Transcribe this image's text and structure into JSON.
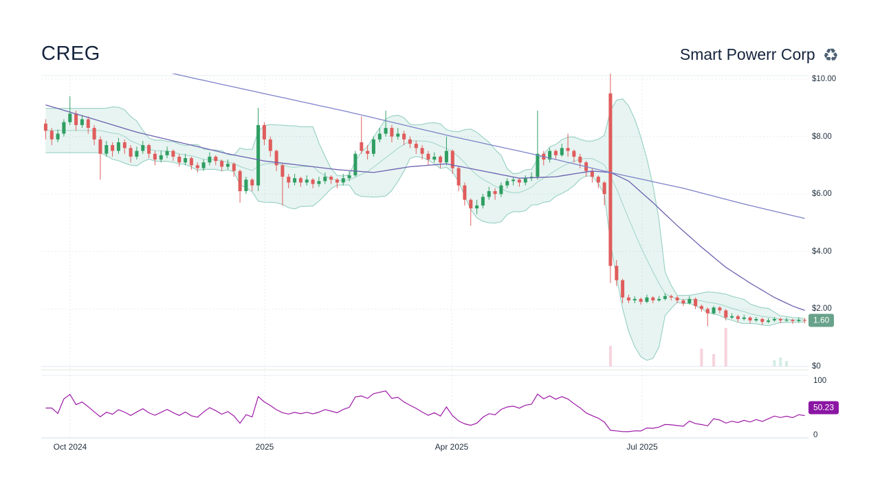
{
  "header": {
    "ticker": "CREG",
    "company": "Smart Powerr Corp",
    "recycle_icon": "♻"
  },
  "price_axis": {
    "labels": [
      "$10.00",
      "$8.00",
      "$6.00",
      "$4.00",
      "$2.00",
      "$0"
    ]
  },
  "time_axis": {
    "labels": [
      "Oct 2024",
      "2025",
      "Apr 2025",
      "Jul 2025"
    ]
  },
  "rsi_axis": {
    "labels": [
      "100",
      "0"
    ]
  },
  "badges": {
    "last_price": "1.60",
    "rsi": "50.23"
  },
  "colors": {
    "up": "#2f9e62",
    "down": "#e05c5c",
    "band_fill": "rgba(57,166,140,0.12)",
    "band_edge": "rgba(57,166,140,0.55)",
    "band_mid": "rgba(57,166,140,0.40)",
    "ma_long": "#7b82c8",
    "ma_medium": "#6a60b0",
    "rsi": "#9c17a6",
    "price_badge": "#68a28b",
    "rsi_badge": "#8b16a3",
    "grid": "#e5ebf2"
  },
  "chart_data": {
    "type": "candlestick",
    "title": "CREG",
    "ylim": [
      0,
      10
    ],
    "y_tick_labels": [
      "$10.00",
      "$8.00",
      "$6.00",
      "$4.00",
      "$2.00",
      "$0"
    ],
    "x_tick_labels": [
      "Oct 2024",
      "2025",
      "Apr 2025",
      "Jul 2025"
    ],
    "last_price": 1.6,
    "bollinger": {
      "window": 10,
      "k": 2
    },
    "oscillator": {
      "period": 7,
      "ylim": [
        0,
        100
      ],
      "last_value": 50.23
    },
    "candles": [
      [
        8.45,
        8.6,
        7.9,
        8.2
      ],
      [
        8.2,
        8.3,
        7.7,
        7.9
      ],
      [
        7.9,
        8.25,
        7.8,
        8.1
      ],
      [
        8.1,
        8.6,
        8.0,
        8.5
      ],
      [
        8.5,
        9.4,
        8.4,
        8.8
      ],
      [
        8.8,
        8.9,
        8.2,
        8.4
      ],
      [
        8.4,
        8.75,
        8.3,
        8.6
      ],
      [
        8.6,
        8.7,
        8.1,
        8.3
      ],
      [
        8.3,
        8.4,
        7.7,
        7.9
      ],
      [
        7.9,
        8.0,
        6.5,
        7.4
      ],
      [
        7.4,
        7.85,
        7.3,
        7.7
      ],
      [
        7.7,
        7.8,
        7.3,
        7.5
      ],
      [
        7.5,
        7.95,
        7.4,
        7.8
      ],
      [
        7.8,
        7.9,
        7.4,
        7.6
      ],
      [
        7.6,
        7.7,
        7.1,
        7.3
      ],
      [
        7.3,
        7.65,
        7.2,
        7.5
      ],
      [
        7.5,
        7.85,
        7.4,
        7.7
      ],
      [
        7.7,
        7.75,
        7.25,
        7.4
      ],
      [
        7.4,
        7.5,
        7.0,
        7.2
      ],
      [
        7.2,
        7.5,
        7.1,
        7.35
      ],
      [
        7.35,
        7.65,
        7.25,
        7.5
      ],
      [
        7.5,
        7.55,
        7.15,
        7.3
      ],
      [
        7.3,
        7.4,
        6.95,
        7.1
      ],
      [
        7.1,
        7.4,
        7.0,
        7.25
      ],
      [
        7.25,
        7.3,
        6.85,
        7.0
      ],
      [
        7.0,
        7.1,
        6.75,
        6.9
      ],
      [
        6.9,
        7.2,
        6.8,
        7.1
      ],
      [
        7.1,
        7.45,
        7.0,
        7.3
      ],
      [
        7.3,
        7.35,
        7.0,
        7.15
      ],
      [
        7.15,
        7.2,
        6.8,
        6.95
      ],
      [
        6.95,
        7.2,
        6.85,
        7.05
      ],
      [
        7.05,
        7.1,
        6.6,
        6.8
      ],
      [
        6.8,
        6.85,
        5.7,
        6.1
      ],
      [
        6.1,
        6.6,
        6.0,
        6.5
      ],
      [
        6.5,
        6.55,
        6.1,
        6.3
      ],
      [
        6.3,
        9.0,
        6.1,
        8.4
      ],
      [
        8.4,
        8.5,
        7.7,
        7.9
      ],
      [
        7.9,
        8.0,
        7.3,
        7.5
      ],
      [
        7.5,
        7.55,
        6.8,
        7.0
      ],
      [
        7.0,
        7.05,
        5.6,
        6.6
      ],
      [
        6.6,
        6.7,
        6.2,
        6.4
      ],
      [
        6.4,
        6.7,
        6.3,
        6.55
      ],
      [
        6.55,
        6.6,
        6.25,
        6.4
      ],
      [
        6.4,
        6.65,
        6.3,
        6.5
      ],
      [
        6.5,
        6.55,
        6.2,
        6.35
      ],
      [
        6.35,
        6.6,
        6.25,
        6.45
      ],
      [
        6.45,
        6.75,
        6.35,
        6.6
      ],
      [
        6.6,
        6.65,
        6.35,
        6.5
      ],
      [
        6.5,
        6.55,
        6.2,
        6.4
      ],
      [
        6.4,
        6.7,
        6.3,
        6.55
      ],
      [
        6.55,
        6.8,
        6.45,
        6.65
      ],
      [
        6.65,
        7.5,
        6.6,
        7.4
      ],
      [
        7.8,
        8.7,
        7.4,
        7.5
      ],
      [
        7.5,
        7.7,
        7.2,
        7.4
      ],
      [
        7.4,
        8.0,
        7.3,
        7.9
      ],
      [
        7.9,
        8.3,
        7.8,
        8.1
      ],
      [
        8.1,
        8.9,
        8.0,
        8.3
      ],
      [
        8.3,
        8.4,
        7.8,
        8.0
      ],
      [
        8.0,
        8.3,
        7.9,
        8.1
      ],
      [
        8.1,
        8.2,
        7.7,
        7.9
      ],
      [
        7.9,
        8.0,
        7.6,
        7.75
      ],
      [
        7.75,
        7.85,
        7.4,
        7.6
      ],
      [
        7.6,
        7.7,
        7.2,
        7.4
      ],
      [
        7.4,
        7.5,
        7.0,
        7.2
      ],
      [
        7.2,
        7.45,
        7.1,
        7.3
      ],
      [
        7.3,
        7.35,
        6.9,
        7.1
      ],
      [
        7.1,
        8.0,
        7.0,
        7.5
      ],
      [
        7.5,
        7.55,
        6.7,
        6.9
      ],
      [
        6.9,
        6.95,
        6.1,
        6.3
      ],
      [
        6.3,
        6.4,
        5.6,
        5.8
      ],
      [
        5.8,
        5.85,
        4.9,
        5.5
      ],
      [
        5.5,
        5.8,
        5.3,
        5.6
      ],
      [
        5.6,
        6.0,
        5.5,
        5.9
      ],
      [
        5.9,
        6.25,
        5.8,
        6.1
      ],
      [
        6.1,
        6.2,
        5.8,
        6.0
      ],
      [
        6.0,
        6.4,
        5.9,
        6.3
      ],
      [
        6.3,
        6.55,
        6.2,
        6.45
      ],
      [
        6.45,
        6.6,
        6.3,
        6.5
      ],
      [
        6.5,
        6.55,
        6.25,
        6.4
      ],
      [
        6.4,
        6.65,
        6.3,
        6.55
      ],
      [
        6.55,
        6.75,
        6.45,
        6.6
      ],
      [
        6.6,
        8.9,
        6.5,
        7.4
      ],
      [
        7.4,
        7.5,
        7.0,
        7.2
      ],
      [
        7.2,
        7.6,
        7.1,
        7.5
      ],
      [
        7.5,
        7.55,
        7.2,
        7.35
      ],
      [
        7.35,
        7.75,
        7.3,
        7.6
      ],
      [
        7.6,
        8.1,
        7.3,
        7.5
      ],
      [
        7.5,
        7.55,
        7.1,
        7.3
      ],
      [
        7.3,
        7.4,
        6.9,
        7.1
      ],
      [
        7.1,
        7.15,
        6.6,
        6.8
      ],
      [
        6.8,
        6.9,
        6.4,
        6.6
      ],
      [
        6.6,
        6.65,
        6.2,
        6.4
      ],
      [
        6.4,
        6.45,
        5.6,
        6.0
      ],
      [
        9.5,
        10.3,
        2.9,
        3.5
      ],
      [
        3.5,
        3.7,
        2.8,
        3.0
      ],
      [
        3.0,
        3.05,
        2.2,
        2.4
      ],
      [
        2.4,
        2.5,
        2.2,
        2.3
      ],
      [
        2.3,
        2.45,
        2.2,
        2.35
      ],
      [
        2.35,
        2.4,
        2.15,
        2.25
      ],
      [
        2.25,
        2.5,
        2.2,
        2.4
      ],
      [
        2.4,
        2.45,
        2.2,
        2.3
      ],
      [
        2.3,
        2.45,
        2.25,
        2.35
      ],
      [
        2.35,
        2.55,
        2.3,
        2.45
      ],
      [
        2.45,
        2.5,
        2.3,
        2.4
      ],
      [
        2.4,
        2.45,
        2.2,
        2.3
      ],
      [
        2.3,
        2.35,
        2.1,
        2.2
      ],
      [
        2.2,
        2.45,
        2.15,
        2.35
      ],
      [
        2.35,
        2.4,
        2.0,
        2.1
      ],
      [
        2.1,
        2.15,
        1.9,
        2.0
      ],
      [
        2.0,
        2.05,
        1.4,
        1.85
      ],
      [
        1.85,
        2.1,
        1.8,
        2.05
      ],
      [
        2.05,
        2.1,
        1.85,
        1.95
      ],
      [
        1.95,
        2.0,
        1.6,
        1.7
      ],
      [
        1.7,
        1.85,
        1.65,
        1.75
      ],
      [
        1.75,
        1.8,
        1.55,
        1.65
      ],
      [
        1.65,
        1.8,
        1.6,
        1.7
      ],
      [
        1.7,
        1.75,
        1.5,
        1.6
      ],
      [
        1.6,
        1.72,
        1.55,
        1.65
      ],
      [
        1.65,
        1.7,
        1.45,
        1.55
      ],
      [
        1.55,
        1.68,
        1.5,
        1.6
      ],
      [
        1.6,
        1.72,
        1.55,
        1.65
      ],
      [
        1.65,
        1.7,
        1.5,
        1.6
      ],
      [
        1.6,
        1.7,
        1.55,
        1.62
      ],
      [
        1.62,
        1.66,
        1.48,
        1.58
      ],
      [
        1.58,
        1.7,
        1.52,
        1.62
      ],
      [
        1.62,
        1.68,
        1.5,
        1.6
      ]
    ],
    "ma_long": [
      [
        0,
        11.2
      ],
      [
        25,
        10.0
      ],
      [
        50,
        8.85
      ],
      [
        67,
        8.0
      ],
      [
        80,
        7.4
      ],
      [
        93,
        6.75
      ],
      [
        105,
        6.2
      ],
      [
        115,
        5.65
      ],
      [
        125,
        5.15
      ]
    ],
    "ma_medium": [
      [
        0,
        9.1
      ],
      [
        8,
        8.6
      ],
      [
        15,
        8.15
      ],
      [
        22,
        7.8
      ],
      [
        30,
        7.4
      ],
      [
        36,
        7.15
      ],
      [
        42,
        7.0
      ],
      [
        48,
        6.85
      ],
      [
        54,
        6.75
      ],
      [
        60,
        6.95
      ],
      [
        66,
        7.05
      ],
      [
        72,
        6.8
      ],
      [
        78,
        6.55
      ],
      [
        84,
        6.6
      ],
      [
        90,
        6.8
      ],
      [
        93,
        6.75
      ],
      [
        96,
        6.45
      ],
      [
        100,
        5.7
      ],
      [
        104,
        4.9
      ],
      [
        108,
        4.15
      ],
      [
        112,
        3.45
      ],
      [
        116,
        2.9
      ],
      [
        120,
        2.4
      ],
      [
        123,
        2.1
      ],
      [
        125,
        1.95
      ]
    ],
    "volume_spikes": [
      {
        "i": 93,
        "h": 30,
        "color": "#f3bcc9"
      },
      {
        "i": 108,
        "h": 26,
        "color": "#f3bcc9"
      },
      {
        "i": 110,
        "h": 18,
        "color": "#f3bcc9"
      },
      {
        "i": 112,
        "h": 56,
        "color": "#f3bcc9"
      },
      {
        "i": 120,
        "h": 9,
        "color": "#bfe4d6"
      },
      {
        "i": 121,
        "h": 13,
        "color": "#bfe4d6"
      },
      {
        "i": 122,
        "h": 8,
        "color": "#bfe4d6"
      }
    ]
  }
}
